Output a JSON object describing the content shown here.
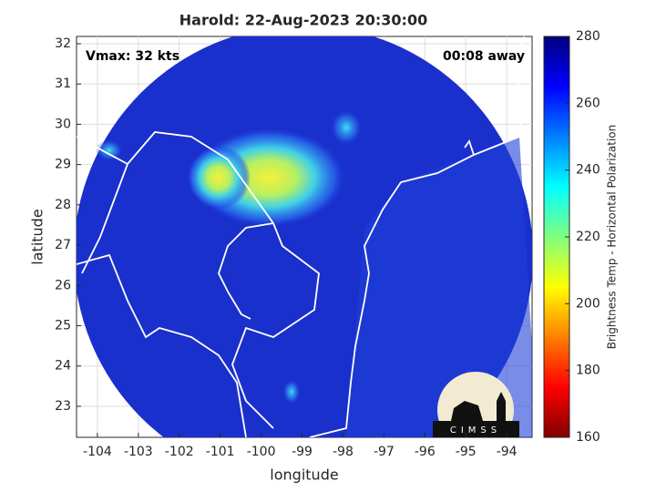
{
  "chart_data": {
    "type": "map",
    "title": "Harold: 22-Aug-2023 20:30:00",
    "annotations": [
      "Vmax: 32 kts",
      "00:08 away"
    ],
    "xlabel": "longitude",
    "ylabel": "latitude",
    "xlim": [
      -104.51,
      -93.38
    ],
    "ylim": [
      22.23,
      32.18
    ],
    "xticks": [
      -104,
      -103,
      -102,
      -101,
      -100,
      -99,
      -98,
      -97,
      -96,
      -95,
      -94
    ],
    "yticks": [
      23,
      24,
      25,
      26,
      27,
      28,
      29,
      30,
      31,
      32
    ],
    "grid": true,
    "colorbar": {
      "label": "Brightness Temp - Horizontal Polarization",
      "clim": [
        160,
        280
      ],
      "ticks": [
        160,
        180,
        200,
        220,
        240,
        260,
        280
      ],
      "colormap": "jet"
    },
    "logo_text": "CIMSS"
  }
}
